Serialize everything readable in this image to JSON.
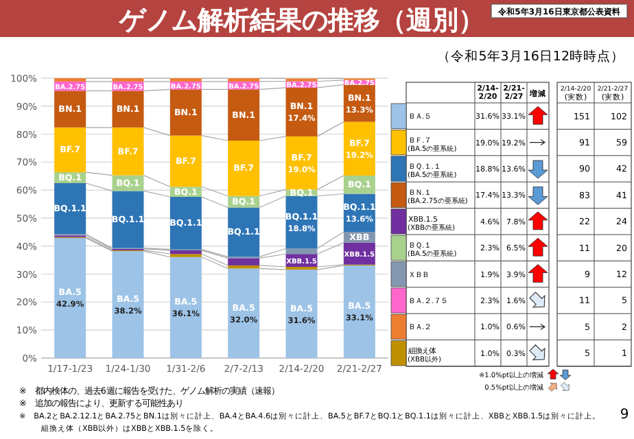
{
  "chart_data": [
    {
      "type": "bar",
      "stacked": true,
      "title": "ゲノム解析結果の推移（週別）",
      "annotations": [
        "令和5年3月16日東京都公表資料",
        "※　都内検体の、過去6週に報告を受けた、ゲノム解析の実績（速報）",
        "※　追加の報告により、更新する可能性あり",
        "※　BA.2とBA.2.12.1とBA.2.75とBN.1は別々に計上、BA.4とBA.4.6は別々に計上、BA.5とBF.7とBQ.1とBQ.1.1は別々に計上、XBBとXBB.1.5は別々に計上。",
        "組換え体（XBB以外）はXBBとXBB.1.5を除く。",
        "9"
      ],
      "categories": [
        "1/17-1/23",
        "1/24-1/30",
        "1/31-2/6",
        "2/7-2/13",
        "2/14-2/20",
        "2/21-2/27"
      ],
      "ylim": [
        0,
        100
      ],
      "yticks": [
        {
          "value": 0,
          "label": "0%"
        },
        {
          "value": 10,
          "label": "10%"
        },
        {
          "value": 20,
          "label": "20%"
        },
        {
          "value": 30,
          "label": "30%"
        },
        {
          "value": 40,
          "label": "40%"
        },
        {
          "value": 50,
          "label": "50%"
        },
        {
          "value": 60,
          "label": "60%"
        },
        {
          "value": 70,
          "label": "70%"
        },
        {
          "value": 80,
          "label": "80%"
        },
        {
          "value": 90,
          "label": "90%"
        },
        {
          "value": 100,
          "label": "100%"
        }
      ],
      "grid": "y",
      "series": [
        {
          "color": "#9dc3e6",
          "values": [
            42.9,
            38.2,
            36.1,
            32.0,
            31.6,
            33.1
          ],
          "value_labels": [
            "BA.5\n42.9%",
            "BA.5\n38.2%",
            "BA.5\n36.1%",
            "BA.5\n32.0%",
            "BA.5\n31.6%",
            "BA.5\n33.1%"
          ]
        },
        {
          "color": "#bf9000",
          "values": [
            0.3,
            0.3,
            1.1,
            1.1,
            1.0,
            0.3
          ]
        },
        {
          "color": "#7030a0",
          "values": [
            0.6,
            0.5,
            1.3,
            2.6,
            4.6,
            7.8
          ],
          "value_labels": [
            null,
            null,
            null,
            null,
            "XBB.1.5",
            "XBB.1.5"
          ]
        },
        {
          "color": "#8497b0",
          "values": [
            0.5,
            0.3,
            0.3,
            0.5,
            1.9,
            3.9
          ],
          "value_labels": [
            null,
            null,
            null,
            null,
            null,
            "XBB"
          ]
        },
        {
          "color": "#2e75b6",
          "values": [
            18.2,
            20.4,
            18.8,
            17.6,
            18.8,
            13.6
          ],
          "value_labels": [
            "BQ.1.1",
            "BQ.1.1",
            "BQ.1.1",
            "BQ.1.1",
            "BQ.1.1\n18.8%",
            "BQ.1.1\n13.6%"
          ]
        },
        {
          "color": "#a9d18e",
          "values": [
            3.9,
            5.6,
            3.6,
            4.1,
            2.3,
            6.5
          ],
          "value_labels": [
            "BQ.1",
            "BQ.1",
            "BQ.1",
            "BQ.1",
            "BQ.1",
            "BQ.1"
          ]
        },
        {
          "color": "#ffc000",
          "values": [
            16.0,
            17.1,
            18.3,
            19.8,
            19.0,
            19.2
          ],
          "value_labels": [
            "BF.7",
            "BF.7",
            "BF.7",
            "BF.7",
            "BF.7\n19.0%",
            "BF.7\n19.2%"
          ]
        },
        {
          "color": "#c55a11",
          "values": [
            13.1,
            13.1,
            16.5,
            18.3,
            17.4,
            13.3
          ],
          "value_labels": [
            "BN.1",
            "BN.1",
            "BN.1",
            "BN.1",
            "BN.1\n17.4%",
            "BN.1\n13.3%"
          ]
        },
        {
          "color": "#ff66cc",
          "values": [
            3.3,
            3.3,
            2.8,
            2.8,
            2.3,
            1.6
          ],
          "value_labels": [
            "BA.2.75",
            "BA.2.75",
            "BA.2.75",
            "BA.2.75",
            "BA.2.75",
            "BA.2.75"
          ]
        },
        {
          "color": "#ed7d31",
          "values": [
            1.2,
            1.2,
            1.2,
            1.2,
            1.0,
            0.6
          ]
        }
      ]
    },
    {
      "type": "other",
      "title": "（令和5年3月16日12時時点）",
      "categories": [
        "ＢＡ.５",
        "ＢＦ.７$_{(BA.5の亜系統)}$",
        "ＢＱ.１.１$_{(BA.5の亜系統)}$",
        "ＢＮ.１$_{(BA.2.75の亜系統)}$",
        "XBB.1.5$_{(XBBの亜系統)}$",
        "ＢＱ.１$_{(BA.5の亜系統)}$",
        "ＸＢＢ",
        "ＢＡ.２.７５",
        "ＢＡ.２",
        "組換え体$_{(XBB以外)}$"
      ],
      "colors": [
        "#9dc3e6",
        "#ffc000",
        "#2e75b6",
        "#c55a11",
        "#7030a0",
        "#a9d18e",
        "#8497b0",
        "#ff66cc",
        "#ed7d31",
        "#bf9000"
      ],
      "annotations": [
        "増減",
        "※1.0%pt以上の増減",
        "0.5%pt以上の増減"
      ],
      "series": [
        {
          "name": "2/14-\n2/20",
          "values": [
            31.6,
            19.0,
            18.8,
            17.4,
            4.6,
            2.3,
            1.9,
            2.3,
            1.0,
            1.0
          ],
          "value_labels": [
            "31.6%",
            "19.0%",
            "18.8%",
            "17.4%",
            "4.6%",
            "2.3%",
            "1.9%",
            "2.3%",
            "1.0%",
            "1.0%"
          ]
        },
        {
          "name": "2/21-\n2/27",
          "values": [
            33.1,
            19.2,
            13.6,
            13.3,
            7.8,
            6.5,
            3.9,
            1.6,
            0.6,
            0.3
          ],
          "value_labels": [
            "33.1%",
            "19.2%",
            "13.6%",
            "13.3%",
            "7.8%",
            "6.5%",
            "3.9%",
            "1.6%",
            "0.6%",
            "0.3%"
          ]
        },
        {
          "name": "2/14-2/20\n(実数)",
          "values": [
            151,
            91,
            90,
            83,
            22,
            11,
            9,
            11,
            5,
            5
          ]
        },
        {
          "name": "2/21-2/27\n(実数)",
          "values": [
            102,
            59,
            42,
            41,
            24,
            20,
            12,
            5,
            2,
            1
          ]
        }
      ],
      "data_labels": true
    }
  ]
}
